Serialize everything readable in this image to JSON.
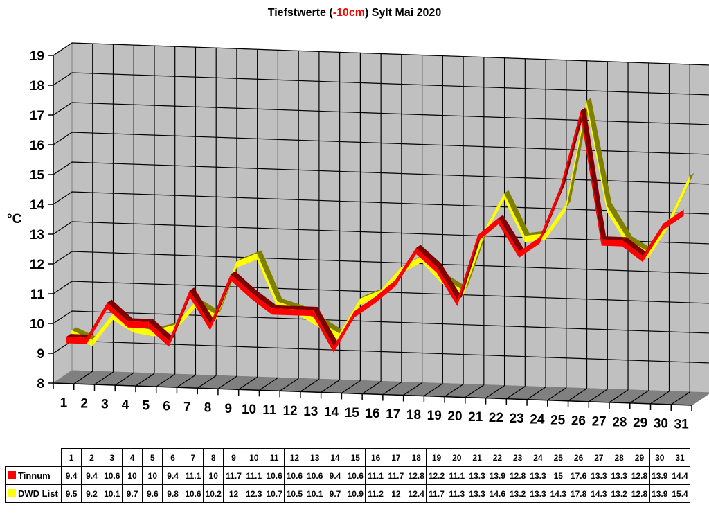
{
  "title": {
    "prefix": "Tiefstwerte (",
    "highlight": "-10cm",
    "suffix": ") Sylt Mai 2020",
    "highlight_color": "#ff0000"
  },
  "colors": {
    "wall": "#c0c0c0",
    "floor": "#808080",
    "grid": "#000000",
    "series_tinnum": "#ff0000",
    "series_dwd": "#ffff00"
  },
  "chart_data": {
    "type": "line",
    "subtype": "3d-line",
    "title": "Tiefstwerte (-10cm) Sylt Mai 2020",
    "xlabel": "",
    "ylabel": "°C",
    "ylim": [
      8,
      19
    ],
    "yticks": [
      8,
      9,
      10,
      11,
      12,
      13,
      14,
      15,
      16,
      17,
      18,
      19
    ],
    "grid": true,
    "legend_position": "data-table",
    "categories": [
      "1",
      "2",
      "3",
      "4",
      "5",
      "6",
      "7",
      "8",
      "9",
      "10",
      "11",
      "12",
      "13",
      "14",
      "15",
      "16",
      "17",
      "18",
      "19",
      "20",
      "21",
      "22",
      "23",
      "24",
      "25",
      "26",
      "27",
      "28",
      "29",
      "30",
      "31"
    ],
    "series": [
      {
        "name": "Tinnum",
        "color": "#ff0000",
        "values": [
          9.4,
          9.4,
          10.6,
          10,
          10,
          9.4,
          11.1,
          10,
          11.7,
          11.1,
          10.6,
          10.6,
          10.6,
          9.4,
          10.6,
          11.1,
          11.7,
          12.8,
          12.2,
          11.1,
          13.3,
          13.9,
          12.8,
          13.3,
          15,
          17.6,
          13.3,
          13.3,
          12.8,
          13.9,
          14.4
        ]
      },
      {
        "name": "DWD List",
        "color": "#ffff00",
        "values": [
          9.5,
          9.2,
          10.1,
          9.7,
          9.6,
          9.8,
          10.6,
          10.2,
          12,
          12.3,
          10.7,
          10.5,
          10.1,
          9.7,
          10.9,
          11.2,
          12,
          12.4,
          11.7,
          11.3,
          13.3,
          14.6,
          13.2,
          13.3,
          14.3,
          17.8,
          14.3,
          13.2,
          12.8,
          13.9,
          15.4
        ]
      }
    ]
  },
  "table": {
    "rows": [
      {
        "label": "Tinnum",
        "swatch_color": "#ff0000",
        "values": [
          "9.4",
          "9.4",
          "10.6",
          "10",
          "10",
          "9.4",
          "11.1",
          "10",
          "11.7",
          "11.1",
          "10.6",
          "10.6",
          "10.6",
          "9.4",
          "10.6",
          "11.1",
          "11.7",
          "12.8",
          "12.2",
          "11.1",
          "13.3",
          "13.9",
          "12.8",
          "13.3",
          "15",
          "17.6",
          "13.3",
          "13.3",
          "12.8",
          "13.9",
          "14.4"
        ]
      },
      {
        "label": "DWD List",
        "swatch_color": "#ffff00",
        "values": [
          "9.5",
          "9.2",
          "10.1",
          "9.7",
          "9.6",
          "9.8",
          "10.6",
          "10.2",
          "12",
          "12.3",
          "10.7",
          "10.5",
          "10.1",
          "9.7",
          "10.9",
          "11.2",
          "12",
          "12.4",
          "11.7",
          "11.3",
          "13.3",
          "14.6",
          "13.2",
          "13.3",
          "14.3",
          "17.8",
          "14.3",
          "13.2",
          "12.8",
          "13.9",
          "15.4"
        ]
      }
    ]
  }
}
